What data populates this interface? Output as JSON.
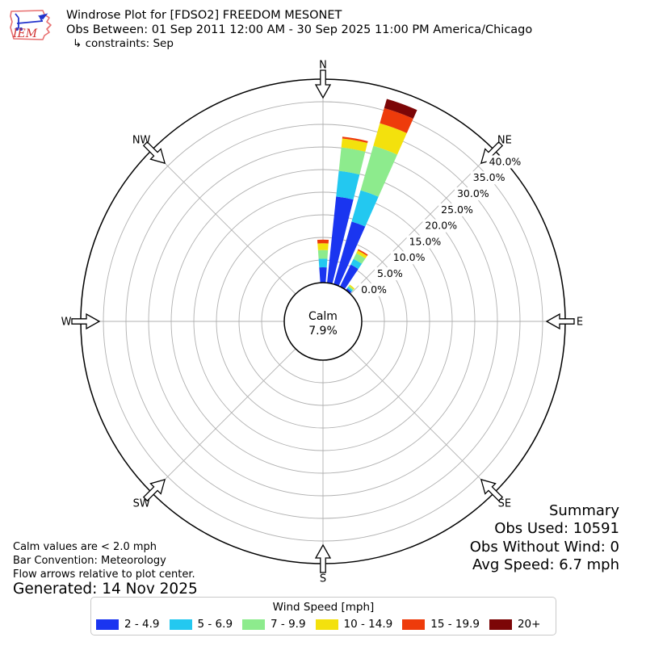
{
  "header": {
    "logo_text": "IEM",
    "title": "Windrose Plot for [FDSO2] FREEDOM MESONET",
    "subtitle": "Obs Between: 01 Sep 2011 12:00 AM - 30 Sep 2025 11:00 PM America/Chicago",
    "constraints": "↳ constraints: Sep"
  },
  "chart_data": {
    "type": "windrose",
    "legend_title": "Wind Speed [mph]",
    "calm": {
      "label": "Calm",
      "pct_text": "7.9%"
    },
    "compass_points": [
      "N",
      "NE",
      "E",
      "SE",
      "S",
      "SW",
      "W",
      "NW"
    ],
    "radial_tick_labels": [
      "0.0%",
      "5.0%",
      "10.0%",
      "15.0%",
      "20.0%",
      "25.0%",
      "30.0%",
      "35.0%",
      "40.0%"
    ],
    "radial_tick_values_pct": [
      0,
      5,
      10,
      15,
      20,
      25,
      30,
      35,
      40
    ],
    "radial_max_pct": 45,
    "radial_label_angle_deg": 45,
    "bar_width_deg": 8,
    "directions_deg": [
      0,
      10,
      20,
      30,
      40
    ],
    "series": [
      {
        "name": "2 - 4.9",
        "color": "#1a35f0",
        "values_pct": [
          3.4,
          19.2,
          14.4,
          5.4,
          0.5
        ]
      },
      {
        "name": "5 - 6.9",
        "color": "#23c8f0",
        "values_pct": [
          1.9,
          5.7,
          7.2,
          1.4,
          0.4
        ]
      },
      {
        "name": "7 - 9.9",
        "color": "#8deb8d",
        "values_pct": [
          1.9,
          5.2,
          10.2,
          1.4,
          0.3
        ]
      },
      {
        "name": "10 - 14.9",
        "color": "#f3e10d",
        "values_pct": [
          1.5,
          2.0,
          5.2,
          0.7,
          0.3
        ]
      },
      {
        "name": "15 - 19.9",
        "color": "#ee3b0b",
        "values_pct": [
          0.8,
          0.4,
          3.5,
          0.3,
          0.0
        ]
      },
      {
        "name": "20+",
        "color": "#7c0607",
        "values_pct": [
          0.0,
          0.0,
          2.1,
          0.0,
          0.0
        ]
      }
    ],
    "grid_color": "#b0b0b0",
    "axis_color": "#000000"
  },
  "notes": {
    "calm_note": "Calm values are < 2.0 mph",
    "convention_note": "Bar Convention: Meteorology",
    "arrows_note": "Flow arrows relative to plot center.",
    "generated": "Generated: 14 Nov 2025"
  },
  "summary": {
    "title": "Summary",
    "obs_used": "Obs Used: 10591",
    "obs_without_wind": "Obs Without Wind: 0",
    "avg_speed": "Avg Speed: 6.7 mph"
  }
}
